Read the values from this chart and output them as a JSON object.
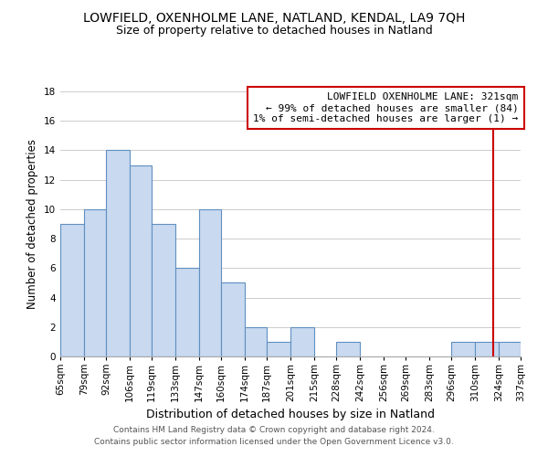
{
  "title": "LOWFIELD, OXENHOLME LANE, NATLAND, KENDAL, LA9 7QH",
  "subtitle": "Size of property relative to detached houses in Natland",
  "xlabel": "Distribution of detached houses by size in Natland",
  "ylabel": "Number of detached properties",
  "bar_edges": [
    65,
    79,
    92,
    106,
    119,
    133,
    147,
    160,
    174,
    187,
    201,
    215,
    228,
    242,
    256,
    269,
    283,
    296,
    310,
    324,
    337
  ],
  "bar_heights": [
    9,
    10,
    14,
    13,
    9,
    6,
    10,
    5,
    2,
    1,
    2,
    0,
    1,
    0,
    0,
    0,
    0,
    1,
    1,
    1
  ],
  "bar_color": "#c8d9f0",
  "bar_edge_color": "#6090c0",
  "tick_labels": [
    "65sqm",
    "79sqm",
    "92sqm",
    "106sqm",
    "119sqm",
    "133sqm",
    "147sqm",
    "160sqm",
    "174sqm",
    "187sqm",
    "201sqm",
    "215sqm",
    "228sqm",
    "242sqm",
    "256sqm",
    "269sqm",
    "283sqm",
    "296sqm",
    "310sqm",
    "324sqm",
    "337sqm"
  ],
  "ylim": [
    0,
    18
  ],
  "yticks": [
    0,
    2,
    4,
    6,
    8,
    10,
    12,
    14,
    16,
    18
  ],
  "reference_line_x": 321,
  "reference_line_color": "#cc0000",
  "legend_title": "LOWFIELD OXENHOLME LANE: 321sqm",
  "legend_line1": "← 99% of detached houses are smaller (84)",
  "legend_line2": "1% of semi-detached houses are larger (1) →",
  "legend_box_edge_color": "#cc0000",
  "footer_line1": "Contains HM Land Registry data © Crown copyright and database right 2024.",
  "footer_line2": "Contains public sector information licensed under the Open Government Licence v3.0.",
  "background_color": "#ffffff",
  "grid_color": "#cccccc",
  "title_fontsize": 10,
  "subtitle_fontsize": 9,
  "ylabel_fontsize": 8.5,
  "xlabel_fontsize": 9,
  "tick_fontsize": 7.5,
  "legend_fontsize": 8,
  "footer_fontsize": 6.5
}
